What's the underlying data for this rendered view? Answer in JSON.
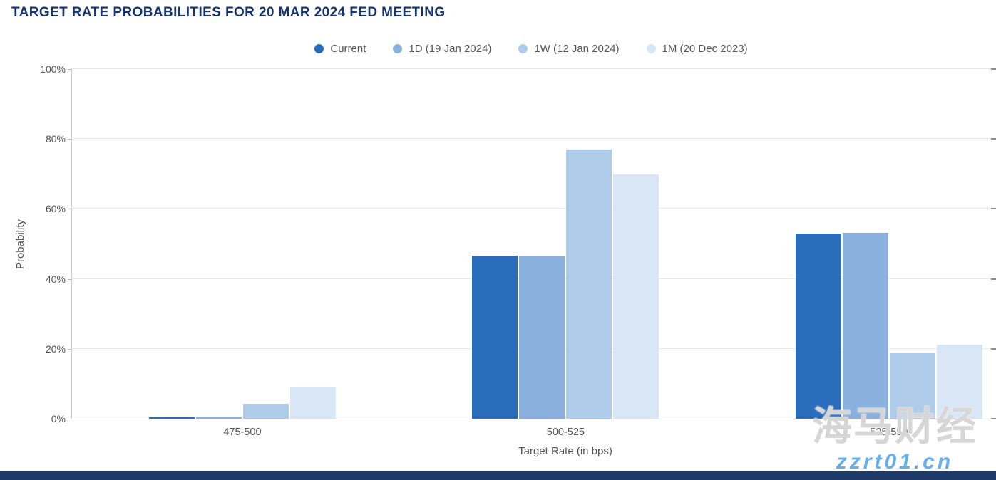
{
  "page": {
    "title": "TARGET RATE PROBABILITIES FOR 20 MAR 2024 FED MEETING",
    "watermark_text": "海马财经",
    "watermark_url": "zzrt01.cn",
    "footer_color": "#1e3a68"
  },
  "chart_data": {
    "type": "bar",
    "title": "TARGET RATE PROBABILITIES FOR 20 MAR 2024 FED MEETING",
    "categories": [
      "475-500",
      "500-525",
      "525-550"
    ],
    "series": [
      {
        "name": "Current",
        "color": "#2a6ebb",
        "values": [
          0.4,
          46.6,
          53.0
        ]
      },
      {
        "name": "1D (19 Jan 2024)",
        "color": "#8ab0de",
        "values": [
          0.5,
          46.4,
          53.1
        ]
      },
      {
        "name": "1W (12 Jan 2024)",
        "color": "#aecbea",
        "values": [
          4.2,
          76.9,
          18.9
        ]
      },
      {
        "name": "1M (20 Dec 2023)",
        "color": "#d8e6f5",
        "values": [
          8.9,
          69.9,
          21.2
        ]
      }
    ],
    "xlabel": "Target Rate (in bps)",
    "ylabel": "Probability",
    "ylim": [
      0,
      100
    ],
    "y_ticks": [
      "0%",
      "20%",
      "40%",
      "60%",
      "80%",
      "100%"
    ],
    "grid": true,
    "legend_position": "top"
  }
}
